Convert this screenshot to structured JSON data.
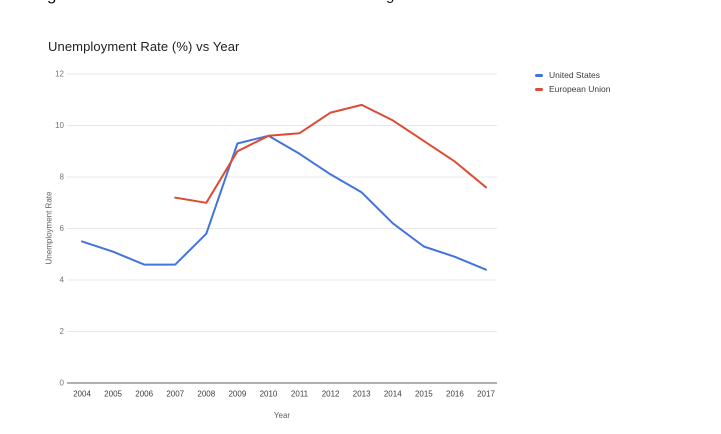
{
  "document": {
    "cropped_line_fragments": [
      "g",
      "g"
    ]
  },
  "chart_data": {
    "type": "line",
    "title": "Unemployment Rate (%) vs Year",
    "xlabel": "Year",
    "ylabel": "Unemployment Rate",
    "categories": [
      "2004",
      "2005",
      "2006",
      "2007",
      "2008",
      "2009",
      "2010",
      "2011",
      "2012",
      "2013",
      "2014",
      "2015",
      "2016",
      "2017"
    ],
    "ylim": [
      0,
      12
    ],
    "yticks": [
      0,
      2,
      4,
      6,
      8,
      10,
      12
    ],
    "grid": true,
    "legend_position": "right",
    "series": [
      {
        "name": "United States",
        "color": "#4374dd",
        "values": [
          5.5,
          5.1,
          4.6,
          4.6,
          5.8,
          9.3,
          9.6,
          8.9,
          8.1,
          7.4,
          6.2,
          5.3,
          4.9,
          4.4
        ]
      },
      {
        "name": "European Union",
        "color": "#dd4b35",
        "values": [
          null,
          null,
          null,
          7.2,
          7.0,
          9.0,
          9.6,
          9.7,
          10.5,
          10.8,
          10.2,
          9.4,
          8.6,
          7.6
        ]
      }
    ]
  }
}
